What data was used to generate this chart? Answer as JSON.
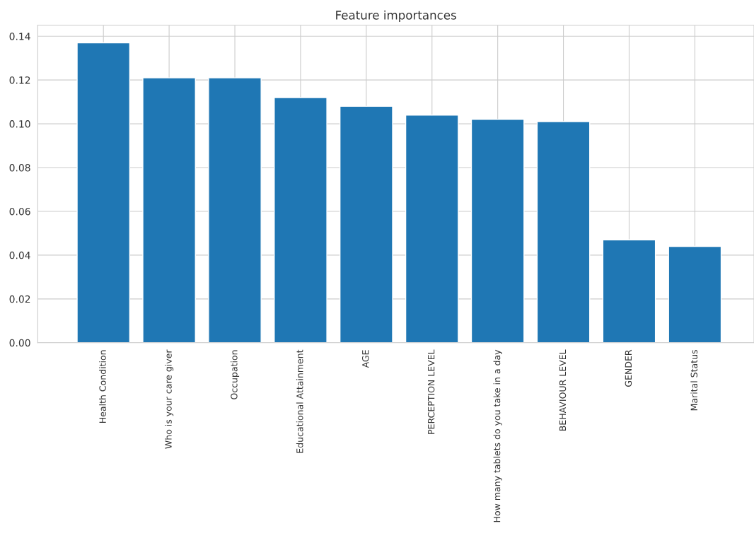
{
  "chart_data": {
    "type": "bar",
    "title": "Feature importances",
    "categories": [
      "Health Condition",
      "Who is your care giver",
      "Occupation",
      "Educational Attainment",
      "AGE",
      "PERCEPTION LEVEL",
      "How many tablets do you take in a day",
      "BEHAVIOUR LEVEL",
      "GENDER",
      "Marital Status"
    ],
    "values": [
      0.137,
      0.121,
      0.121,
      0.112,
      0.108,
      0.104,
      0.102,
      0.101,
      0.047,
      0.044
    ],
    "color": "#1f77b4",
    "ylim": [
      0,
      0.145
    ],
    "yticks": [
      {
        "value": 0,
        "label": "0.00"
      },
      {
        "value": 0.02,
        "label": "0.02"
      },
      {
        "value": 0.04,
        "label": "0.04"
      },
      {
        "value": 0.06,
        "label": "0.06"
      },
      {
        "value": 0.08,
        "label": "0.08"
      },
      {
        "value": 0.1,
        "label": "0.10"
      },
      {
        "value": 0.12,
        "label": "0.12"
      },
      {
        "value": 0.14,
        "label": "0.14"
      }
    ],
    "grid": true
  }
}
